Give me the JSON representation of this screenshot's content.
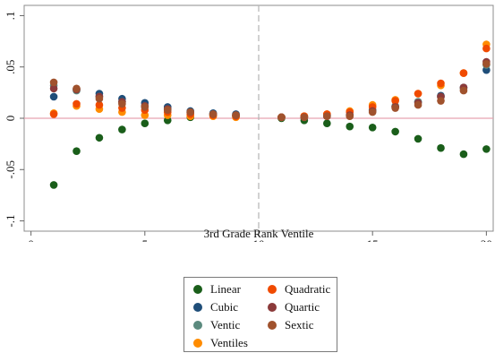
{
  "chart_data": {
    "type": "scatter",
    "title": "",
    "xlabel": "3rd Grade Rank Ventile",
    "ylabel": "",
    "xlim": [
      -0.3,
      20.3
    ],
    "ylim": [
      -0.11,
      0.11
    ],
    "x_ticks": [
      0,
      5,
      10,
      15,
      20
    ],
    "x_tick_labels": [
      "0",
      "5",
      "10",
      "15",
      "20"
    ],
    "y_ticks": [
      -0.1,
      -0.05,
      0,
      0.05,
      0.1
    ],
    "y_tick_labels": [
      "-.1",
      "-.05",
      "0",
      ".05",
      ".1"
    ],
    "grid": false,
    "reference_lines": [
      {
        "axis": "y",
        "value": 0,
        "color": "#e8a3b1",
        "style": "solid"
      },
      {
        "axis": "x",
        "value": 10,
        "color": "#b5b5b5",
        "style": "dashed"
      }
    ],
    "legend_position": "bottom",
    "x": [
      1,
      2,
      3,
      4,
      5,
      6,
      7,
      8,
      9,
      11,
      12,
      13,
      14,
      15,
      16,
      17,
      18,
      19,
      20
    ],
    "series": [
      {
        "name": "Linear",
        "color": "#1a5e1a",
        "values": [
          -0.065,
          -0.032,
          -0.019,
          -0.011,
          -0.005,
          -0.002,
          0.001,
          0.003,
          0.002,
          0.0,
          -0.002,
          -0.005,
          -0.008,
          -0.009,
          -0.013,
          -0.02,
          -0.029,
          -0.035,
          -0.03
        ]
      },
      {
        "name": "Cubic",
        "color": "#1f4e79",
        "values": [
          0.021,
          0.028,
          0.024,
          0.019,
          0.015,
          0.011,
          0.007,
          0.005,
          0.004,
          0.001,
          0.001,
          0.003,
          0.003,
          0.008,
          0.011,
          0.016,
          0.022,
          0.03,
          0.047
        ]
      },
      {
        "name": "Ventic",
        "color": "#5b8a7e",
        "values": [
          0.032,
          0.027,
          0.021,
          0.016,
          0.012,
          0.009,
          0.006,
          0.004,
          0.003,
          0.001,
          0.001,
          0.002,
          0.003,
          0.008,
          0.012,
          0.016,
          0.021,
          0.029,
          0.052
        ]
      },
      {
        "name": "Ventiles",
        "color": "#ff8c00",
        "values": [
          0.005,
          0.012,
          0.009,
          0.006,
          0.003,
          0.003,
          0.002,
          0.002,
          0.001,
          0.001,
          0.002,
          0.004,
          0.007,
          0.013,
          0.018,
          0.024,
          0.032,
          0.044,
          0.072
        ]
      },
      {
        "name": "Quadratic",
        "color": "#f04a00",
        "values": [
          0.004,
          0.014,
          0.013,
          0.01,
          0.008,
          0.006,
          0.004,
          0.003,
          0.002,
          0.001,
          0.002,
          0.004,
          0.006,
          0.011,
          0.017,
          0.024,
          0.034,
          0.044,
          0.068
        ]
      },
      {
        "name": "Quartic",
        "color": "#8b3a3a",
        "values": [
          0.029,
          0.028,
          0.021,
          0.016,
          0.012,
          0.009,
          0.006,
          0.004,
          0.003,
          0.001,
          0.001,
          0.002,
          0.003,
          0.007,
          0.011,
          0.015,
          0.021,
          0.03,
          0.055
        ]
      },
      {
        "name": "Sextic",
        "color": "#a0522d",
        "values": [
          0.035,
          0.029,
          0.019,
          0.014,
          0.011,
          0.008,
          0.006,
          0.004,
          0.003,
          0.001,
          0.001,
          0.002,
          0.002,
          0.006,
          0.01,
          0.013,
          0.017,
          0.027,
          0.053
        ]
      }
    ]
  },
  "legend": {
    "items": [
      {
        "label": "Linear",
        "color": "#1a5e1a"
      },
      {
        "label": "Quadratic",
        "color": "#f04a00"
      },
      {
        "label": "Cubic",
        "color": "#1f4e79"
      },
      {
        "label": "Quartic",
        "color": "#8b3a3a"
      },
      {
        "label": "Ventic",
        "color": "#5b8a7e"
      },
      {
        "label": "Sextic",
        "color": "#a0522d"
      },
      {
        "label": "Ventiles",
        "color": "#ff8c00"
      }
    ]
  }
}
